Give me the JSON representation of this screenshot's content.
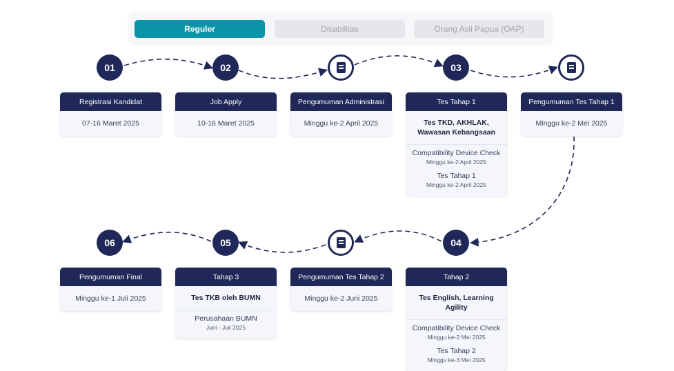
{
  "tabs": [
    {
      "label": "Reguler",
      "active": true
    },
    {
      "label": "Disabilitas",
      "active": false
    },
    {
      "label": "Orang Asli Papua (OAP)",
      "active": false
    }
  ],
  "colors": {
    "accent": "#0b93a8",
    "navy": "#1f2858"
  },
  "steps": [
    {
      "marker": "01",
      "title": "Registrasi Kandidat",
      "date": "07-16 Maret 2025"
    },
    {
      "marker": "02",
      "title": "Job Apply",
      "date": "10-16 Maret 2025"
    },
    {
      "marker": "document-icon",
      "title": "Pengumuman Administrasi",
      "date": "Minggu ke-2 April 2025"
    },
    {
      "marker": "03",
      "title": "Tes Tahap 1",
      "subtitle": "Tes TKD, AKHLAK, Wawasan Kebangsaan",
      "items": [
        {
          "title": "Compatibility Device Check",
          "date": "Minggu ke-2 April 2025"
        },
        {
          "title": "Tes Tahap 1",
          "date": "Minggu ke-2 April 2025"
        }
      ]
    },
    {
      "marker": "document-icon",
      "title": "Pengumuman Tes Tahap 1",
      "date": "Minggu ke-2 Mei 2025"
    },
    {
      "marker": "04",
      "title": "Tahap 2",
      "subtitle": "Tes English, Learning Agility",
      "items": [
        {
          "title": "Compatibility Device Check",
          "date": "Minggu ke-2 Mei 2025"
        },
        {
          "title": "Tes Tahap 2",
          "date": "Minggu ke-3 Mei 2025"
        }
      ]
    },
    {
      "marker": "document-icon",
      "title": "Pengumuman Tes Tahap 2",
      "date": "Minggu ke-2 Juni 2025"
    },
    {
      "marker": "05",
      "title": "Tahap 3",
      "subtitle": "Tes TKB oleh BUMN",
      "items": [
        {
          "title": "Perusahaan BUMN",
          "date": "Juni - Juli 2025"
        }
      ]
    },
    {
      "marker": "06",
      "title": "Pengumuman Final",
      "date": "Minggu ke-1 Juli 2025"
    }
  ]
}
